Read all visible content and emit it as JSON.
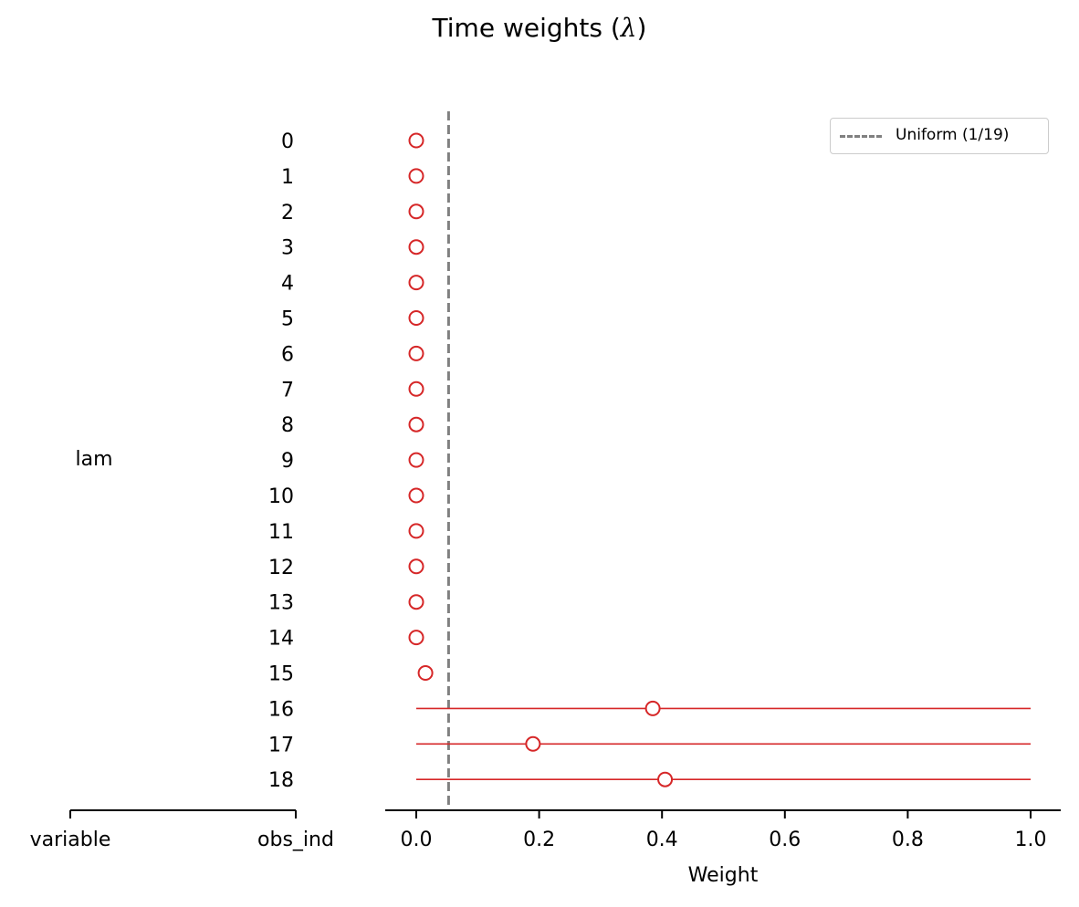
{
  "title": "Time weights (",
  "title_symbol": "λ",
  "title_close": ")",
  "chart_data": {
    "type": "scatter",
    "title": "Time weights (λ)",
    "xlabel": "Weight",
    "ylabel_variable": "variable",
    "ylabel_obs": "obs_ind",
    "variable_name": "lam",
    "xlim": [
      -0.05,
      1.05
    ],
    "xticks": [
      "0.0",
      "0.2",
      "0.4",
      "0.6",
      "0.8",
      "1.0"
    ],
    "categories": [
      "0",
      "1",
      "2",
      "3",
      "4",
      "5",
      "6",
      "7",
      "8",
      "9",
      "10",
      "11",
      "12",
      "13",
      "14",
      "15",
      "16",
      "17",
      "18"
    ],
    "series": [
      {
        "values": [
          0.0,
          0.0,
          0.0,
          0.0,
          0.0,
          0.0,
          0.0,
          0.0,
          0.0,
          0.0,
          0.0,
          0.0,
          0.0,
          0.0,
          0.0,
          0.015,
          0.385,
          0.19,
          0.405
        ],
        "intervals": [
          null,
          null,
          null,
          null,
          null,
          null,
          null,
          null,
          null,
          null,
          null,
          null,
          null,
          null,
          null,
          null,
          [
            0.0,
            1.0
          ],
          [
            0.0,
            1.0
          ],
          [
            0.0,
            1.0
          ]
        ],
        "color": "#d62728"
      }
    ],
    "reference_line": {
      "x": 0.0526,
      "label": "Uniform (1/19)",
      "color": "#808080",
      "style": "dashed"
    },
    "legend_position": "top-right",
    "grid": false
  }
}
